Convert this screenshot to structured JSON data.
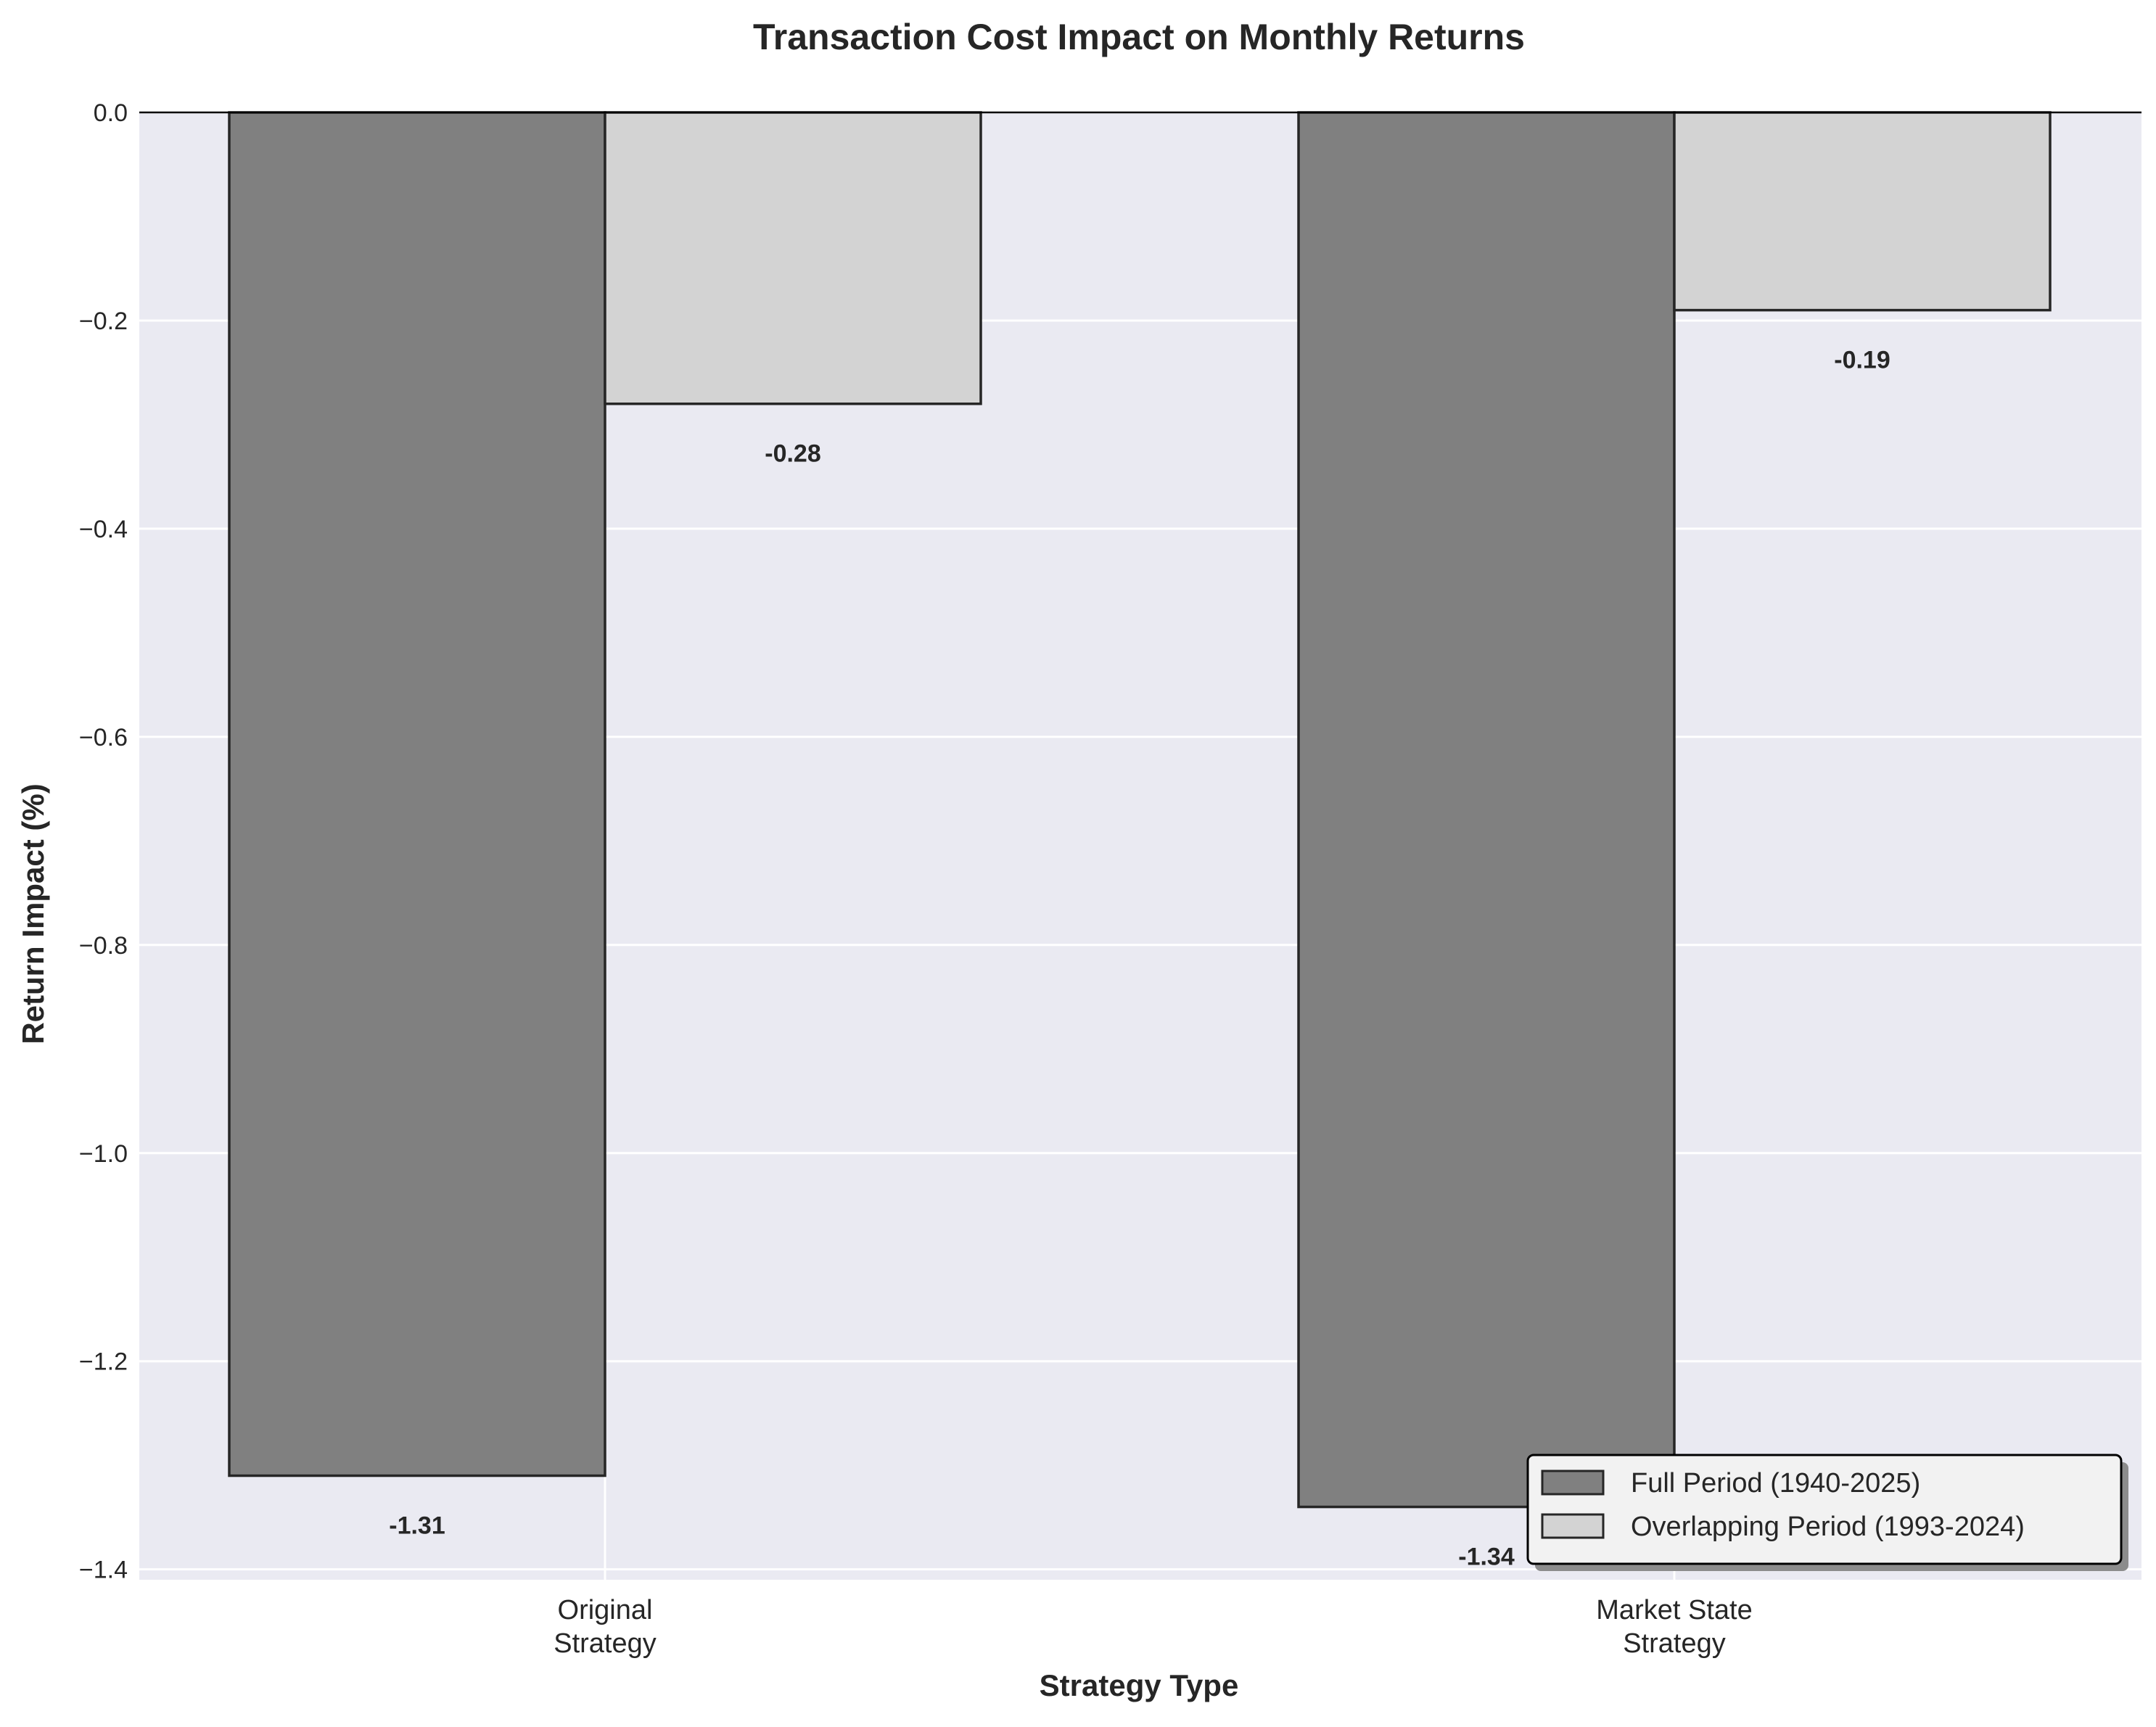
{
  "chart_data": {
    "type": "bar",
    "title": "Transaction Cost Impact on Monthly Returns",
    "xlabel": "Strategy Type",
    "ylabel": "Return Impact (%)",
    "categories": [
      [
        "Original",
        "Strategy"
      ],
      [
        "Market State",
        "Strategy"
      ]
    ],
    "series": [
      {
        "name": "Full Period (1940-2025)",
        "values": [
          -1.31,
          -1.34
        ],
        "labels": [
          "-1.31",
          "-1.34"
        ],
        "color": "#808080"
      },
      {
        "name": "Overlapping Period (1993-2024)",
        "values": [
          -0.28,
          -0.19
        ],
        "labels": [
          "-0.28",
          "-0.19"
        ],
        "color": "#d3d3d3"
      }
    ],
    "ylim": [
      -1.41,
      0.0
    ],
    "yticks": [
      0.0,
      -0.2,
      -0.4,
      -0.6,
      -0.8,
      -1.0,
      -1.2,
      -1.4
    ],
    "ytick_labels": [
      "0.0",
      "−0.2",
      "−0.4",
      "−0.6",
      "−0.8",
      "−1.0",
      "−1.2",
      "−1.4"
    ],
    "grid": true,
    "legend_position": "bottom-right",
    "colors": {
      "plot_background": "#eaeaf2",
      "grid": "#ffffff",
      "edge": "#262626",
      "text": "#262626"
    }
  }
}
